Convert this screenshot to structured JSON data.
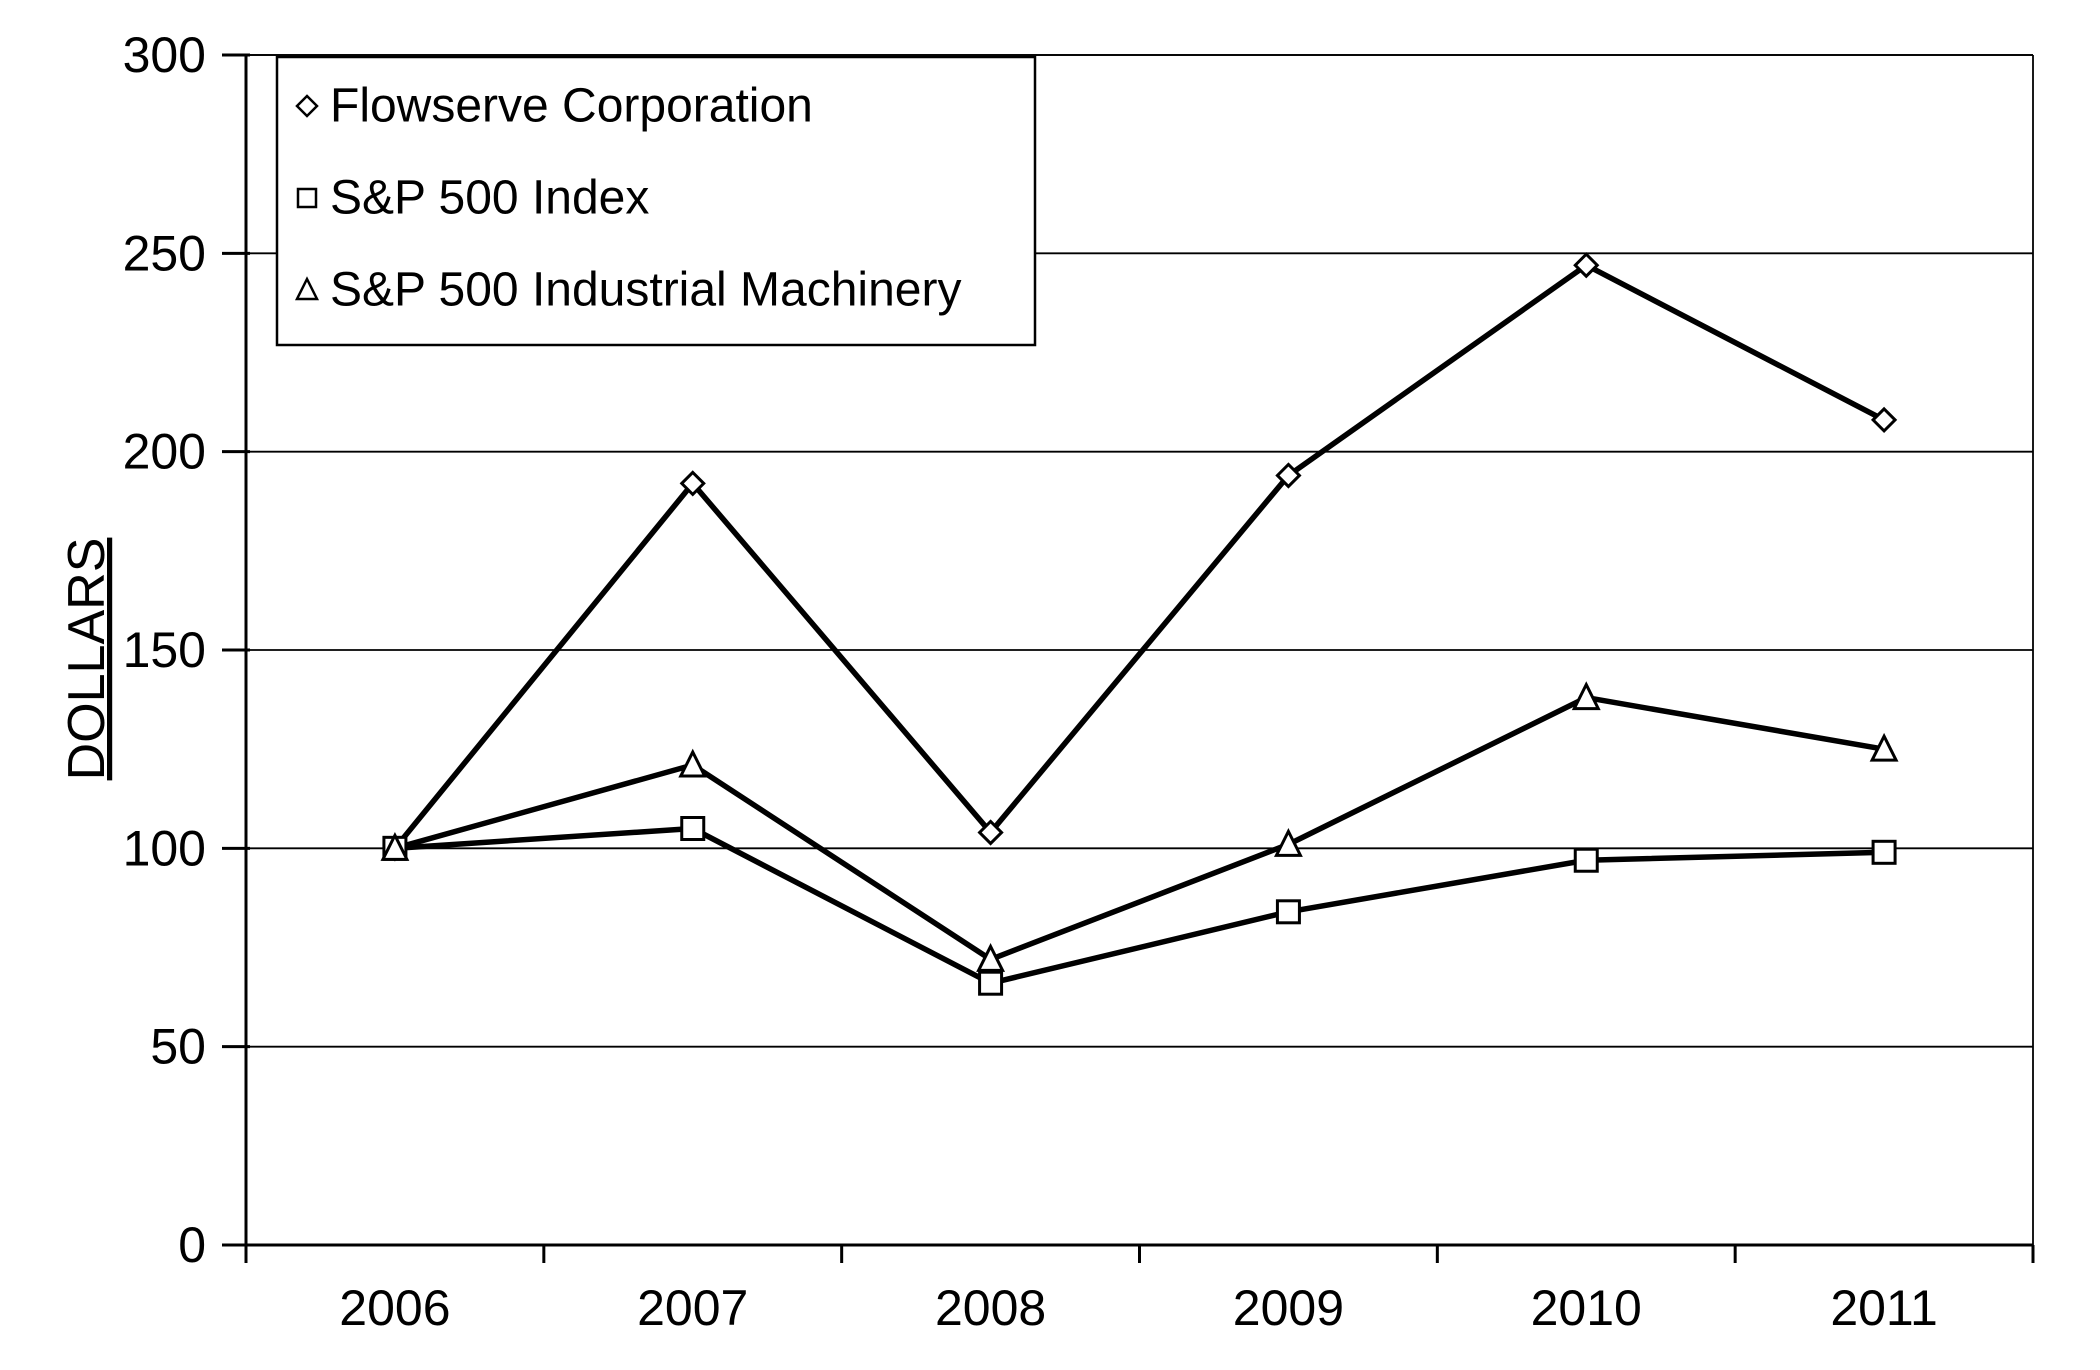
{
  "page": {
    "background_color": "#ffffff",
    "line_color": "#000000",
    "marker_fill_color": "#ffffff"
  },
  "chart_data": {
    "type": "line",
    "title": "",
    "xlabel": "",
    "ylabel": "DOLLARS",
    "categories": [
      "2006",
      "2007",
      "2008",
      "2009",
      "2010",
      "2011"
    ],
    "series": [
      {
        "name": "Flowserve Corporation",
        "marker": "diamond-marker-icon",
        "values": [
          100,
          192,
          104,
          194,
          247,
          208
        ]
      },
      {
        "name": "S&P 500 Index",
        "marker": "square-marker-icon",
        "values": [
          100,
          105,
          66,
          84,
          97,
          99
        ]
      },
      {
        "name": "S&P 500 Industrial Machinery",
        "marker": "triangle-marker-icon",
        "values": [
          100,
          121,
          72,
          101,
          138,
          125
        ]
      }
    ],
    "ylim": [
      0,
      300
    ],
    "yticks": [
      0,
      50,
      100,
      150,
      200,
      250,
      300
    ],
    "grid": "horizontal",
    "legend_position": "top-left",
    "axis_color": "#000000"
  }
}
